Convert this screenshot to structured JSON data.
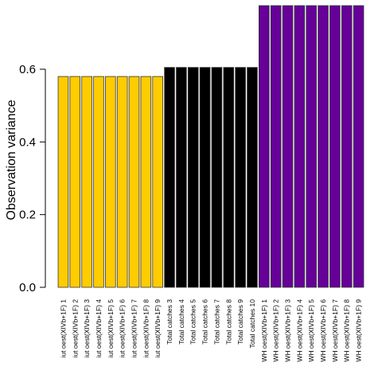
{
  "chart_data": {
    "type": "bar",
    "title": "",
    "xlabel": "",
    "ylabel": "Observation variance",
    "ylim": [
      0,
      0.78
    ],
    "yticks": [
      "0.0",
      "0.2",
      "0.4",
      "0.6"
    ],
    "ytick_values": [
      0,
      0.2,
      0.4,
      0.6
    ],
    "grid": false,
    "categories": [
      "iut oest(XIVb+1F) 1",
      "iut oest(XIVb+1F) 2",
      "iut oest(XIVb+1F) 3",
      "iut oest(XIVb+1F) 4",
      "iut oest(XIVb+1F) 5",
      "iut oest(XIVb+1F) 6",
      "iut oest(XIVb+1F) 7",
      "iut oest(XIVb+1F) 8",
      "iut oest(XIVb+1F) 9",
      "Total catches 3",
      "Total catches 4",
      "Total catches 5",
      "Total catches 6",
      "Total catches 7",
      "Total catches 8",
      "Total catches 9",
      "Total catches 10",
      "WH oest(XIVb+1F) 1",
      "WH oest(XIVb+1F) 2",
      "WH oest(XIVb+1F) 3",
      "WH oest(XIVb+1F) 4",
      "WH oest(XIVb+1F) 5",
      "WH oest(XIVb+1F) 6",
      "WH oest(XIVb+1F) 7",
      "WH oest(XIVb+1F) 8",
      "WH oest(XIVb+1F) 9"
    ],
    "values": [
      0.58,
      0.58,
      0.58,
      0.58,
      0.58,
      0.58,
      0.58,
      0.58,
      0.58,
      0.605,
      0.605,
      0.605,
      0.605,
      0.605,
      0.605,
      0.605,
      0.605,
      0.775,
      0.775,
      0.775,
      0.775,
      0.775,
      0.775,
      0.775,
      0.775,
      0.775
    ],
    "bar_colors": [
      "#FFCC00",
      "#FFCC00",
      "#FFCC00",
      "#FFCC00",
      "#FFCC00",
      "#FFCC00",
      "#FFCC00",
      "#FFCC00",
      "#FFCC00",
      "#000000",
      "#000000",
      "#000000",
      "#000000",
      "#000000",
      "#000000",
      "#000000",
      "#000000",
      "#660099",
      "#660099",
      "#660099",
      "#660099",
      "#660099",
      "#660099",
      "#660099",
      "#660099",
      "#660099"
    ],
    "bar_edge_color": "#333333"
  }
}
